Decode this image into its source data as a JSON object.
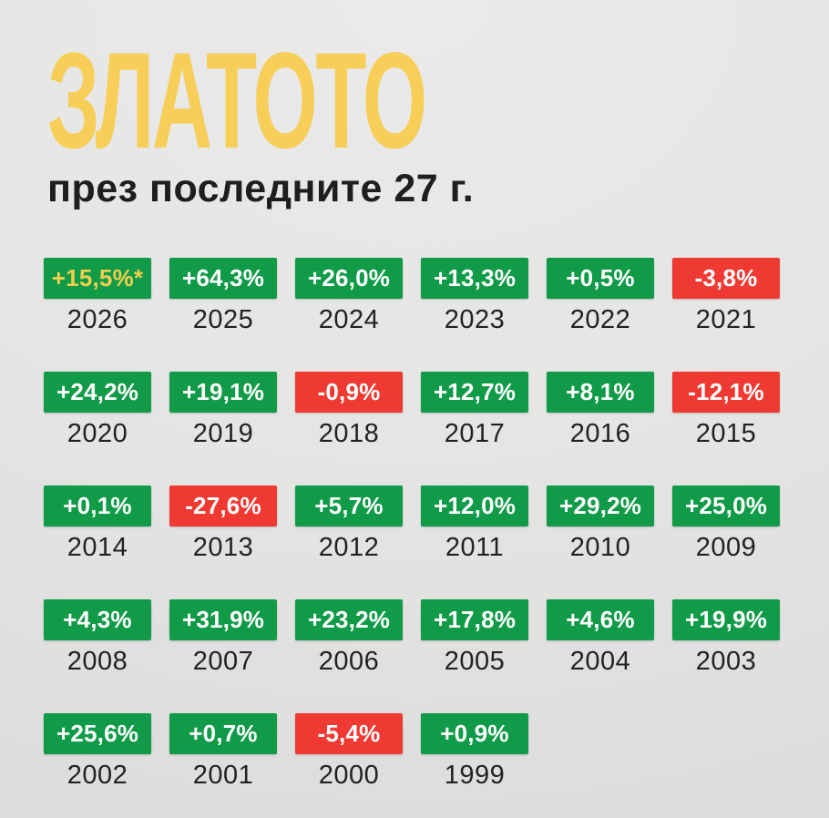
{
  "title": "ЗЛАТОТО",
  "subtitle": "през последните 27 г.",
  "colors": {
    "positive": "#119B49",
    "negative": "#EE3A32",
    "title_yellow": "#F6CE58",
    "highlight_text": "#F0CE4E",
    "background": "#E5E5E4",
    "background_light": "#EAEAEA",
    "text_dark": "#1E1E1E"
  },
  "chart_data": {
    "type": "table",
    "title": "ЗЛАТОТО",
    "subtitle": "през последните 27 г.",
    "unit": "annual return percent",
    "layout": {
      "columns": 6,
      "rows": 5,
      "order": "years descending, row-major"
    },
    "items": [
      {
        "year": "2026",
        "label": "+15,5%*",
        "value": 15.5,
        "sign": "positive",
        "highlight": true
      },
      {
        "year": "2025",
        "label": "+64,3%",
        "value": 64.3,
        "sign": "positive"
      },
      {
        "year": "2024",
        "label": "+26,0%",
        "value": 26.0,
        "sign": "positive"
      },
      {
        "year": "2023",
        "label": "+13,3%",
        "value": 13.3,
        "sign": "positive"
      },
      {
        "year": "2022",
        "label": "+0,5%",
        "value": 0.5,
        "sign": "positive"
      },
      {
        "year": "2021",
        "label": "-3,8%",
        "value": -3.8,
        "sign": "negative"
      },
      {
        "year": "2020",
        "label": "+24,2%",
        "value": 24.2,
        "sign": "positive"
      },
      {
        "year": "2019",
        "label": "+19,1%",
        "value": 19.1,
        "sign": "positive"
      },
      {
        "year": "2018",
        "label": "-0,9%",
        "value": -0.9,
        "sign": "negative"
      },
      {
        "year": "2017",
        "label": "+12,7%",
        "value": 12.7,
        "sign": "positive"
      },
      {
        "year": "2016",
        "label": "+8,1%",
        "value": 8.1,
        "sign": "positive"
      },
      {
        "year": "2015",
        "label": "-12,1%",
        "value": -12.1,
        "sign": "negative"
      },
      {
        "year": "2014",
        "label": "+0,1%",
        "value": 0.1,
        "sign": "positive"
      },
      {
        "year": "2013",
        "label": "-27,6%",
        "value": -27.6,
        "sign": "negative"
      },
      {
        "year": "2012",
        "label": "+5,7%",
        "value": 5.7,
        "sign": "positive"
      },
      {
        "year": "2011",
        "label": "+12,0%",
        "value": 12.0,
        "sign": "positive"
      },
      {
        "year": "2010",
        "label": "+29,2%",
        "value": 29.2,
        "sign": "positive"
      },
      {
        "year": "2009",
        "label": "+25,0%",
        "value": 25.0,
        "sign": "positive"
      },
      {
        "year": "2008",
        "label": "+4,3%",
        "value": 4.3,
        "sign": "positive"
      },
      {
        "year": "2007",
        "label": "+31,9%",
        "value": 31.9,
        "sign": "positive"
      },
      {
        "year": "2006",
        "label": "+23,2%",
        "value": 23.2,
        "sign": "positive"
      },
      {
        "year": "2005",
        "label": "+17,8%",
        "value": 17.8,
        "sign": "positive"
      },
      {
        "year": "2004",
        "label": "+4,6%",
        "value": 4.6,
        "sign": "positive"
      },
      {
        "year": "2003",
        "label": "+19,9%",
        "value": 19.9,
        "sign": "positive"
      },
      {
        "year": "2002",
        "label": "+25,6%",
        "value": 25.6,
        "sign": "positive"
      },
      {
        "year": "2001",
        "label": "+0,7%",
        "value": 0.7,
        "sign": "positive"
      },
      {
        "year": "2000",
        "label": "-5,4%",
        "value": -5.4,
        "sign": "negative"
      },
      {
        "year": "1999",
        "label": "+0,9%",
        "value": 0.9,
        "sign": "positive"
      }
    ]
  }
}
